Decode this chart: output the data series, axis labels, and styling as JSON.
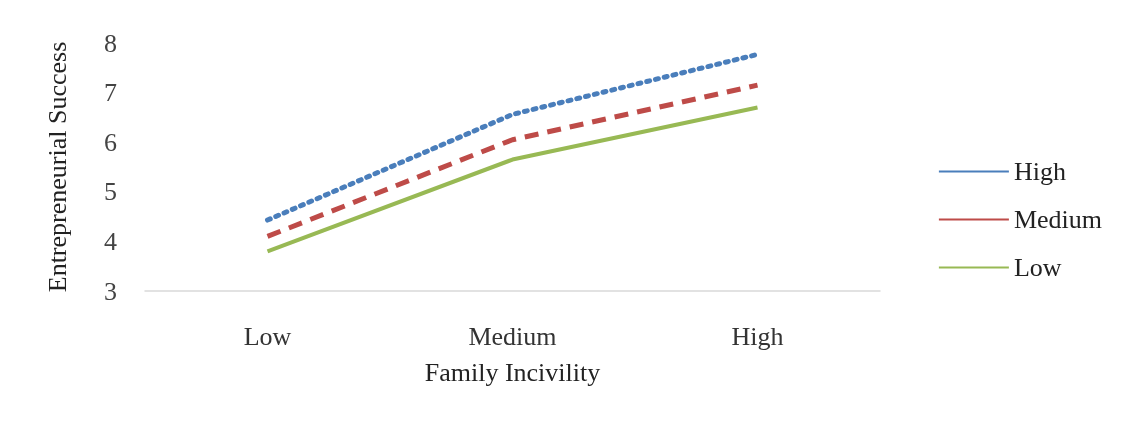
{
  "chart_data": {
    "type": "line",
    "xlabel": "Family Incivility",
    "ylabel": "Entrepreneurial Success",
    "categories": [
      "Low",
      "Medium",
      "High"
    ],
    "series": [
      {
        "name": "High",
        "color": "#4a7ebb",
        "line_style": "dotted",
        "values": [
          4.43,
          6.56,
          7.77
        ]
      },
      {
        "name": "Medium",
        "color": "#be4b48",
        "line_style": "dashed",
        "values": [
          4.1,
          6.05,
          7.15
        ]
      },
      {
        "name": "Low",
        "color": "#98b954",
        "line_style": "solid",
        "values": [
          3.8,
          5.65,
          6.7
        ]
      }
    ],
    "ylim": [
      3,
      8
    ],
    "yticks": [
      3,
      4,
      5,
      6,
      7,
      8
    ],
    "grid": false,
    "legend": "right",
    "marker": "none"
  }
}
